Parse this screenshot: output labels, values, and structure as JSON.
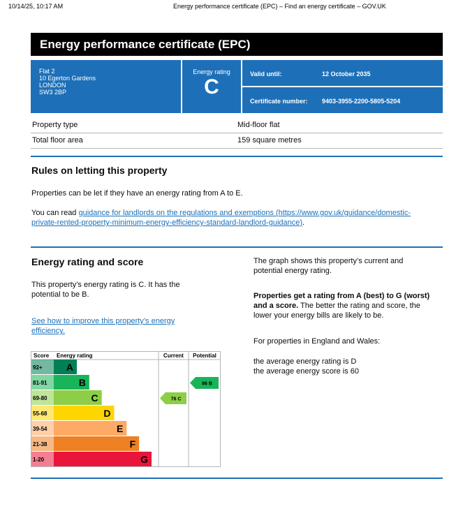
{
  "browser": {
    "datetime": "10/14/25, 10:17 AM",
    "page_title": "Energy performance certificate (EPC) – Find an energy certificate – GOV.UK"
  },
  "title": "Energy performance certificate (EPC)",
  "address": {
    "line1": "Flat 2",
    "line2": "10 Egerton Gardens",
    "line3": "LONDON",
    "line4": "SW3 2BP"
  },
  "rating": {
    "label": "Energy rating",
    "value": "C"
  },
  "valid": {
    "label": "Valid until:",
    "value": "12 October 2035"
  },
  "cert": {
    "label": "Certificate number:",
    "value": "9403-3955-2200-5805-5204"
  },
  "property": [
    {
      "key": "Property type",
      "value": "Mid-floor flat"
    },
    {
      "key": "Total floor area",
      "value": "159 square metres"
    }
  ],
  "letting": {
    "heading": "Rules on letting this property",
    "p1": "Properties can be let if they have an energy rating from A to E.",
    "p2_pre": "You can read ",
    "p2_link_a": "guidance for landlords on the regulations and exemptions",
    "p2_url_a": " (https://www.gov.uk/guidance/domestic-",
    "p2_link_b": "private-rented-property-minimum-energy-efficiency-standard-landlord-guidance)",
    "p2_post": "."
  },
  "score": {
    "heading": "Energy rating and score",
    "p1a": "This property’s energy rating is C. It has the",
    "p1b": "potential to be B.",
    "link_a": "See how to improve this property’s energy",
    "link_b": "efficiency."
  },
  "right": {
    "p1a": "The graph shows this property’s current and",
    "p1b": "potential energy rating.",
    "p2_bold_a": "Properties get a rating from A (best) to G (worst)",
    "p2_bold_b": "and a score.",
    "p2_rest_a": " The better the rating and score, the",
    "p2_rest_b": "lower your energy bills are likely to be.",
    "p3": "For properties in England and Wales:",
    "p4a": "the average energy rating is D",
    "p4b": "the average energy score is 60"
  },
  "chart_data": {
    "type": "bar",
    "headers": {
      "score": "Score",
      "rating": "Energy rating",
      "current": "Current",
      "potential": "Potential"
    },
    "bands": [
      {
        "range": "92+",
        "letter": "A",
        "color": "#008054"
      },
      {
        "range": "81-91",
        "letter": "B",
        "color": "#19b459"
      },
      {
        "range": "69-80",
        "letter": "C",
        "color": "#8dce46"
      },
      {
        "range": "55-68",
        "letter": "D",
        "color": "#ffd500"
      },
      {
        "range": "39-54",
        "letter": "E",
        "color": "#fcaa65"
      },
      {
        "range": "21-38",
        "letter": "F",
        "color": "#ef8023"
      },
      {
        "range": "1-20",
        "letter": "G",
        "color": "#e9153b"
      }
    ],
    "current": {
      "score": 76,
      "band": "C",
      "label": "76 C",
      "color": "#8dce46"
    },
    "potential": {
      "score": 86,
      "band": "B",
      "label": "86 B",
      "color": "#19b459"
    }
  }
}
